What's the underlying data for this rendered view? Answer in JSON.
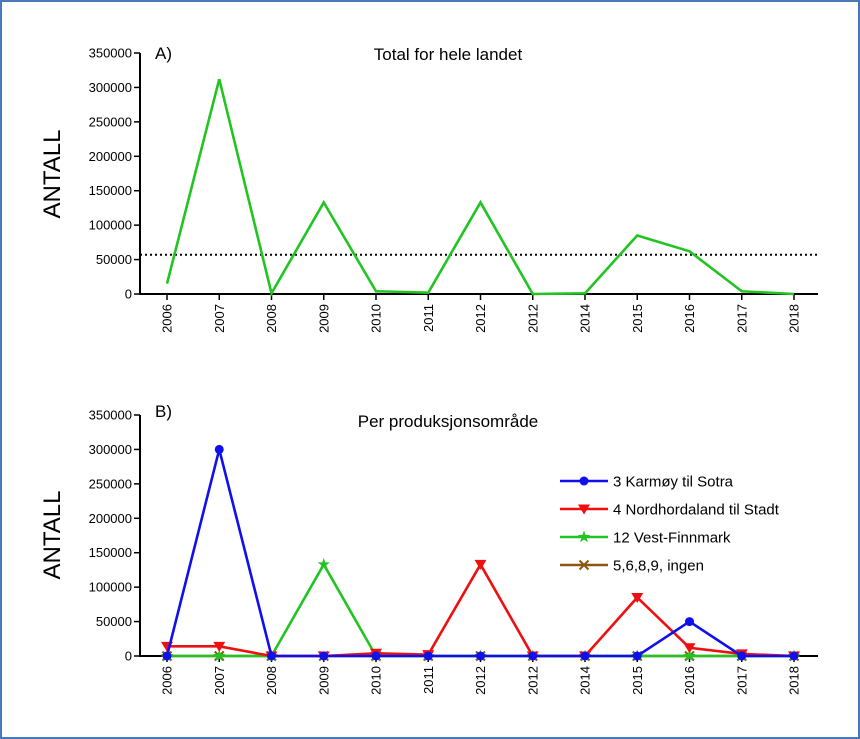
{
  "colors": {
    "border": "#4a78b8",
    "green": "#22c422",
    "blue": "#1010ee",
    "red": "#ee1010",
    "brown": "#8b5a10"
  },
  "chart_data": [
    {
      "type": "line",
      "panel_label": "A)",
      "title": "Total for hele landet",
      "ylabel": "ANTALL",
      "ylim": [
        0,
        350000
      ],
      "yticks": [
        "0",
        "50000",
        "100000",
        "150000",
        "200000",
        "250000",
        "300000",
        "350000"
      ],
      "categories": [
        "2006",
        "2007",
        "2008",
        "2009",
        "2010",
        "2011",
        "2012",
        "2012",
        "2014",
        "2015",
        "2016",
        "2017",
        "2018"
      ],
      "series": [
        {
          "color": "green",
          "marker": "none",
          "values": [
            15000,
            312000,
            1000,
            133000,
            4000,
            2000,
            133000,
            0,
            1000,
            85000,
            62000,
            4000,
            0
          ]
        }
      ],
      "reference_line": {
        "y": 57000,
        "style": "dotted"
      }
    },
    {
      "type": "line",
      "panel_label": "B)",
      "title": "Per produksjonsområde",
      "ylabel": "ANTALL",
      "ylim": [
        0,
        350000
      ],
      "yticks": [
        "0",
        "50000",
        "100000",
        "150000",
        "200000",
        "250000",
        "300000",
        "350000"
      ],
      "categories": [
        "2006",
        "2007",
        "2008",
        "2009",
        "2010",
        "2011",
        "2012",
        "2012",
        "2014",
        "2015",
        "2016",
        "2017",
        "2018"
      ],
      "legend_position": "right",
      "series": [
        {
          "name": "3 Karmøy til Sotra",
          "color": "blue",
          "marker": "circle",
          "values": [
            0,
            300000,
            0,
            0,
            0,
            0,
            0,
            0,
            0,
            0,
            50000,
            0,
            0
          ]
        },
        {
          "name": "4 Nordhordaland til Stadt",
          "color": "red",
          "marker": "triangle-down",
          "values": [
            14000,
            14000,
            0,
            0,
            4000,
            2000,
            133000,
            0,
            0,
            85000,
            12000,
            3000,
            0
          ]
        },
        {
          "name": "12 Vest-Finnmark",
          "color": "green",
          "marker": "star",
          "values": [
            0,
            0,
            0,
            133000,
            0,
            0,
            0,
            0,
            0,
            0,
            0,
            0,
            0
          ]
        },
        {
          "name": "5,6,8,9, ingen",
          "color": "brown",
          "marker": "cross",
          "values": [
            0,
            0,
            0,
            0,
            0,
            0,
            0,
            0,
            0,
            0,
            0,
            0,
            0
          ]
        }
      ]
    }
  ]
}
